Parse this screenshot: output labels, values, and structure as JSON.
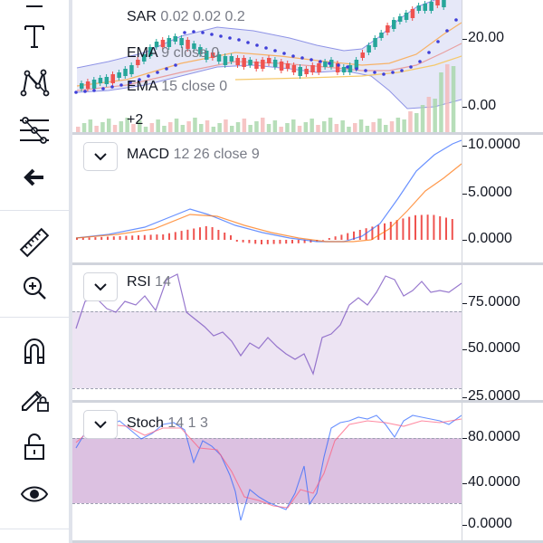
{
  "toolbar": {
    "tools": [
      {
        "name": "text-tool-icon"
      },
      {
        "name": "pattern-tool-icon"
      },
      {
        "name": "fib-tool-icon"
      },
      {
        "name": "back-arrow-icon"
      },
      {
        "name": "ruler-icon"
      },
      {
        "name": "zoom-in-icon"
      },
      {
        "name": "magnet-icon"
      },
      {
        "name": "lock-drawings-icon"
      },
      {
        "name": "unlock-icon"
      },
      {
        "name": "eye-icon"
      }
    ]
  },
  "main_pane": {
    "legend": {
      "sar_name": "SAR",
      "sar_params": "0.02 0.02 0.2",
      "ema9_name": "EMA",
      "ema9_params": "9 close 0",
      "ema15_name": "EMA",
      "ema15_params": "15 close 0",
      "more": "+2"
    },
    "scale": [
      "20.00",
      "0.00"
    ]
  },
  "macd_pane": {
    "name": "MACD",
    "params": "12 26 close 9",
    "scale": [
      "10.0000",
      "5.0000",
      "0.0000"
    ]
  },
  "rsi_pane": {
    "name": "RSI",
    "params": "14",
    "scale": [
      "75.0000",
      "50.0000",
      "25.0000"
    ]
  },
  "stoch_pane": {
    "name": "Stoch",
    "params": "14 1 3",
    "scale": [
      "80.0000",
      "40.0000",
      "0.0000"
    ]
  },
  "colors": {
    "up": "#26a69a",
    "down": "#ef5350",
    "macd_line": "#2962ff",
    "signal_line": "#ff6d00",
    "rsi_line": "#7e57c2",
    "rsi_band": "#ede4f3",
    "stoch_band": "#dcc1e1",
    "sar_dots": "#3f3fd8"
  }
}
